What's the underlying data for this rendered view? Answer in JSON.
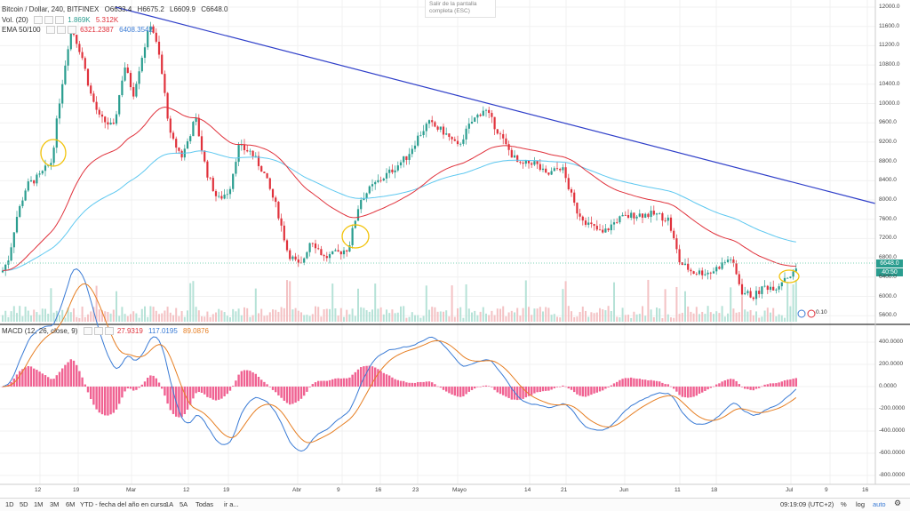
{
  "chart": {
    "symbol_title": "Bitcoin / Dollar, 240, BITFINEX",
    "ohlc": {
      "o": "O6633.4",
      "h": "H6675.2",
      "l": "L6609.9",
      "c": "C6648.0"
    },
    "vol_label": "Vol. (20)",
    "vol_values": [
      "1.869K",
      "5.312K"
    ],
    "ema_label": "EMA 50/100",
    "ema_values": [
      "6321.2387",
      "6408.3542"
    ],
    "macd_label": "MACD (12, 26, close, 9)",
    "macd_values": [
      "27.9319",
      "117.0195",
      "89.0876"
    ],
    "tooltip": "Salir de la pantalla completa (ESC)",
    "last_price": "6648.0",
    "countdown": "40:50",
    "marker_label": "0.10",
    "colors": {
      "up": "#2a9d8f",
      "down": "#e0323c",
      "trendline": "#2f3fc9",
      "ema_fast": "#e0323c",
      "ema_slow": "#5ec8f0",
      "macd": "#3a7bd5",
      "signal": "#e67e22",
      "hist": "#f06292",
      "circle": "#f2c30a"
    }
  },
  "price_axis": [
    "12000.0",
    "11600.0",
    "11200.0",
    "10800.0",
    "10400.0",
    "10000.0",
    "9600.0",
    "9200.0",
    "8800.0",
    "8400.0",
    "8000.0",
    "7600.0",
    "7200.0",
    "6800.0",
    "6400.0",
    "6000.0",
    "5600.0"
  ],
  "macd_axis": [
    "400.0000",
    "200.0000",
    "0.0000",
    "-200.0000",
    "-400.0000",
    "-600.0000",
    "-800.0000"
  ],
  "time_axis": [
    "12",
    "19",
    "Mar",
    "12",
    "19",
    "Abr",
    "9",
    "16",
    "23",
    "Mayo",
    "14",
    "21",
    "Jun",
    "11",
    "18",
    "Jul",
    "9",
    "16"
  ],
  "bottom_bar": {
    "timeframes": [
      "1D",
      "5D",
      "1M",
      "3M",
      "6M",
      "YTD - fecha del año en curso",
      "1A",
      "5A",
      "Todas",
      "ir a..."
    ],
    "clock": "09:19:09 (UTC+2)",
    "pct": "%",
    "log": "log",
    "auto": "auto"
  }
}
